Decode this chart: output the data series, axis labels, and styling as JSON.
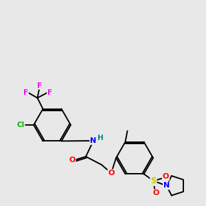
{
  "bg_color": "#e8e8e8",
  "bond_color": "#000000",
  "atom_colors": {
    "F": "#ff00ff",
    "Cl": "#00bb00",
    "N": "#0000ff",
    "O": "#ff0000",
    "S": "#cccc00",
    "H": "#008888",
    "C": "#000000"
  }
}
